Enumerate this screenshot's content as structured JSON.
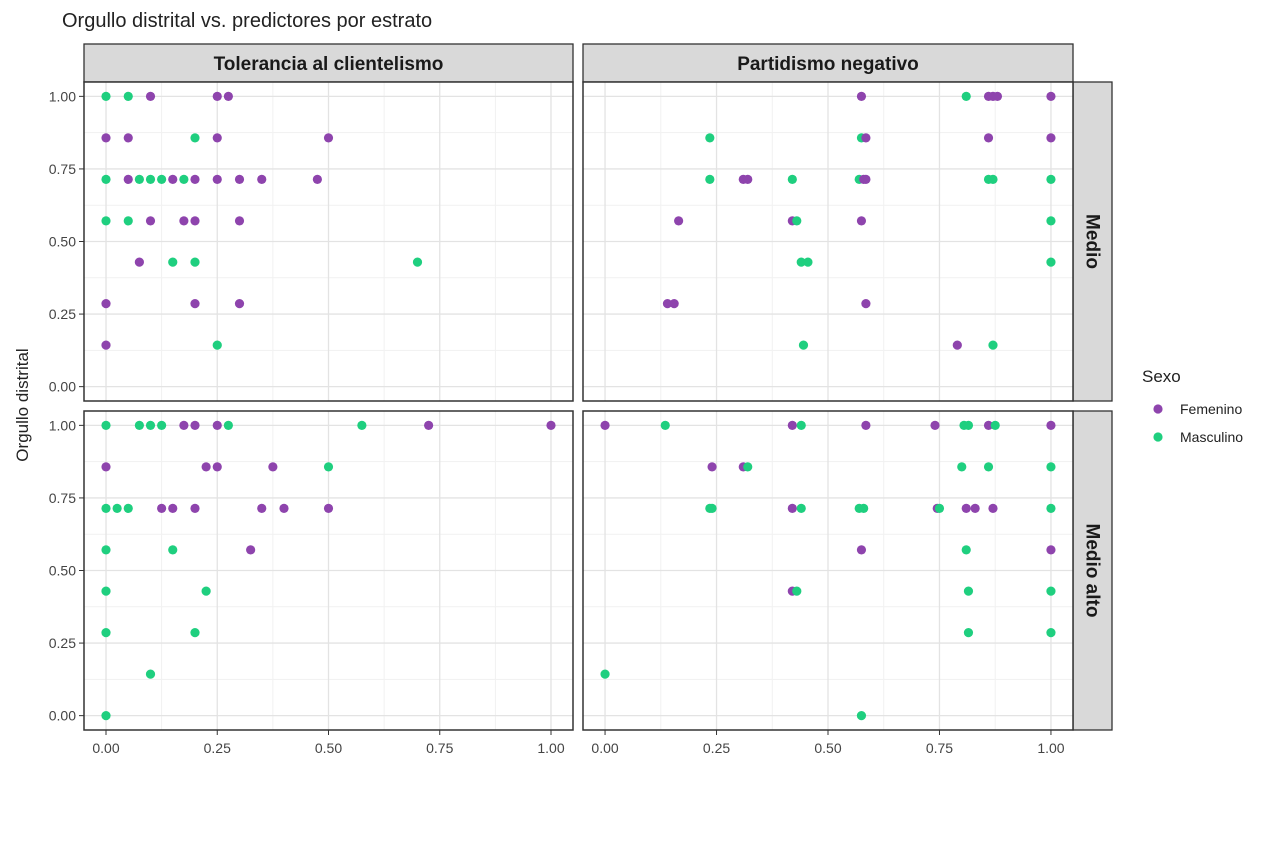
{
  "chart_data": {
    "type": "scatter",
    "title": "Orgullo distrital vs. predictores por estrato",
    "ylabel": "Orgullo distrital",
    "xlabel": "",
    "xlim": [
      0,
      1
    ],
    "ylim": [
      0,
      1
    ],
    "x_ticks": [
      "0.00",
      "0.25",
      "0.50",
      "0.75",
      "1.00"
    ],
    "y_ticks": [
      "0.00",
      "0.25",
      "0.50",
      "0.75",
      "1.00"
    ],
    "grid": true,
    "facet_columns": [
      "Tolerancia al clientelismo",
      "Partidismo negativo"
    ],
    "facet_rows": [
      "Medio",
      "Medio alto"
    ],
    "legend": {
      "title": "Sexo",
      "position": "right",
      "entries": [
        {
          "label": "Femenino",
          "color": "#8e44ad"
        },
        {
          "label": "Masculino",
          "color": "#1fcf7f"
        }
      ]
    },
    "colors": {
      "Femenino": "#8e44ad",
      "Masculino": "#1fcf7f"
    },
    "panels": [
      {
        "col": "Tolerancia al clientelismo",
        "row": "Medio",
        "points": [
          [
            0,
            1,
            "M"
          ],
          [
            0.05,
            1,
            "M"
          ],
          [
            0.1,
            1,
            "F"
          ],
          [
            0.25,
            1,
            "F"
          ],
          [
            0.275,
            1,
            "F"
          ],
          [
            0,
            0.857,
            "F"
          ],
          [
            0.05,
            0.857,
            "F"
          ],
          [
            0.2,
            0.857,
            "M"
          ],
          [
            0.25,
            0.857,
            "F"
          ],
          [
            0.5,
            0.857,
            "F"
          ],
          [
            0,
            0.714,
            "M"
          ],
          [
            0.05,
            0.714,
            "F"
          ],
          [
            0.075,
            0.714,
            "M"
          ],
          [
            0.1,
            0.714,
            "M"
          ],
          [
            0.125,
            0.714,
            "M"
          ],
          [
            0.15,
            0.714,
            "F"
          ],
          [
            0.175,
            0.714,
            "M"
          ],
          [
            0.2,
            0.714,
            "F"
          ],
          [
            0.25,
            0.714,
            "F"
          ],
          [
            0.3,
            0.714,
            "F"
          ],
          [
            0.35,
            0.714,
            "F"
          ],
          [
            0.475,
            0.714,
            "F"
          ],
          [
            0,
            0.571,
            "M"
          ],
          [
            0.05,
            0.571,
            "M"
          ],
          [
            0.1,
            0.571,
            "F"
          ],
          [
            0.175,
            0.571,
            "F"
          ],
          [
            0.2,
            0.571,
            "F"
          ],
          [
            0.3,
            0.571,
            "F"
          ],
          [
            0.075,
            0.429,
            "F"
          ],
          [
            0.15,
            0.429,
            "M"
          ],
          [
            0.2,
            0.429,
            "M"
          ],
          [
            0.7,
            0.429,
            "M"
          ],
          [
            0,
            0.286,
            "F"
          ],
          [
            0.2,
            0.286,
            "F"
          ],
          [
            0.3,
            0.286,
            "F"
          ],
          [
            0,
            0.143,
            "F"
          ],
          [
            0.25,
            0.143,
            "M"
          ]
        ]
      },
      {
        "col": "Partidismo negativo",
        "row": "Medio",
        "points": [
          [
            0.575,
            1,
            "F"
          ],
          [
            0.81,
            1,
            "M"
          ],
          [
            0.86,
            1,
            "F"
          ],
          [
            0.87,
            1,
            "F"
          ],
          [
            0.88,
            1,
            "F"
          ],
          [
            1,
            1,
            "F"
          ],
          [
            0.235,
            0.857,
            "M"
          ],
          [
            0.575,
            0.857,
            "M"
          ],
          [
            0.585,
            0.857,
            "F"
          ],
          [
            0.86,
            0.857,
            "F"
          ],
          [
            1,
            0.857,
            "F"
          ],
          [
            0.235,
            0.714,
            "M"
          ],
          [
            0.31,
            0.714,
            "F"
          ],
          [
            0.32,
            0.714,
            "F"
          ],
          [
            0.42,
            0.714,
            "M"
          ],
          [
            0.57,
            0.714,
            "M"
          ],
          [
            0.58,
            0.714,
            "F"
          ],
          [
            0.585,
            0.714,
            "F"
          ],
          [
            0.86,
            0.714,
            "M"
          ],
          [
            0.87,
            0.714,
            "M"
          ],
          [
            1,
            0.714,
            "M"
          ],
          [
            0.165,
            0.571,
            "F"
          ],
          [
            0.42,
            0.571,
            "F"
          ],
          [
            0.43,
            0.571,
            "M"
          ],
          [
            0.575,
            0.571,
            "F"
          ],
          [
            1,
            0.571,
            "M"
          ],
          [
            0.44,
            0.429,
            "M"
          ],
          [
            0.455,
            0.429,
            "M"
          ],
          [
            1,
            0.429,
            "M"
          ],
          [
            0.14,
            0.286,
            "F"
          ],
          [
            0.155,
            0.286,
            "F"
          ],
          [
            0.585,
            0.286,
            "F"
          ],
          [
            0.445,
            0.143,
            "M"
          ],
          [
            0.79,
            0.143,
            "F"
          ],
          [
            0.87,
            0.143,
            "M"
          ]
        ]
      },
      {
        "col": "Tolerancia al clientelismo",
        "row": "Medio alto",
        "points": [
          [
            0,
            1,
            "M"
          ],
          [
            0.075,
            1,
            "M"
          ],
          [
            0.1,
            1,
            "M"
          ],
          [
            0.125,
            1,
            "M"
          ],
          [
            0.175,
            1,
            "F"
          ],
          [
            0.2,
            1,
            "F"
          ],
          [
            0.25,
            1,
            "F"
          ],
          [
            0.275,
            1,
            "M"
          ],
          [
            0.575,
            1,
            "M"
          ],
          [
            0.725,
            1,
            "F"
          ],
          [
            1,
            1,
            "F"
          ],
          [
            0,
            0.857,
            "F"
          ],
          [
            0.225,
            0.857,
            "F"
          ],
          [
            0.25,
            0.857,
            "F"
          ],
          [
            0.375,
            0.857,
            "F"
          ],
          [
            0.5,
            0.857,
            "M"
          ],
          [
            0,
            0.714,
            "M"
          ],
          [
            0.025,
            0.714,
            "M"
          ],
          [
            0.05,
            0.714,
            "M"
          ],
          [
            0.125,
            0.714,
            "F"
          ],
          [
            0.15,
            0.714,
            "F"
          ],
          [
            0.2,
            0.714,
            "F"
          ],
          [
            0.35,
            0.714,
            "F"
          ],
          [
            0.4,
            0.714,
            "F"
          ],
          [
            0.5,
            0.714,
            "F"
          ],
          [
            0,
            0.571,
            "M"
          ],
          [
            0.15,
            0.571,
            "M"
          ],
          [
            0.325,
            0.571,
            "F"
          ],
          [
            0,
            0.429,
            "M"
          ],
          [
            0.225,
            0.429,
            "M"
          ],
          [
            0,
            0.286,
            "M"
          ],
          [
            0.2,
            0.286,
            "M"
          ],
          [
            0.1,
            0.143,
            "M"
          ],
          [
            0,
            0,
            "M"
          ]
        ]
      },
      {
        "col": "Partidismo negativo",
        "row": "Medio alto",
        "points": [
          [
            0,
            1,
            "F"
          ],
          [
            0.135,
            1,
            "M"
          ],
          [
            0.42,
            1,
            "F"
          ],
          [
            0.44,
            1,
            "M"
          ],
          [
            0.585,
            1,
            "F"
          ],
          [
            0.74,
            1,
            "F"
          ],
          [
            0.805,
            1,
            "M"
          ],
          [
            0.815,
            1,
            "M"
          ],
          [
            0.86,
            1,
            "F"
          ],
          [
            0.875,
            1,
            "M"
          ],
          [
            1,
            1,
            "F"
          ],
          [
            0.24,
            0.857,
            "F"
          ],
          [
            0.31,
            0.857,
            "F"
          ],
          [
            0.32,
            0.857,
            "M"
          ],
          [
            0.8,
            0.857,
            "M"
          ],
          [
            0.86,
            0.857,
            "M"
          ],
          [
            1,
            0.857,
            "M"
          ],
          [
            0.235,
            0.714,
            "M"
          ],
          [
            0.24,
            0.714,
            "M"
          ],
          [
            0.42,
            0.714,
            "F"
          ],
          [
            0.44,
            0.714,
            "M"
          ],
          [
            0.57,
            0.714,
            "M"
          ],
          [
            0.58,
            0.714,
            "M"
          ],
          [
            0.745,
            0.714,
            "F"
          ],
          [
            0.75,
            0.714,
            "M"
          ],
          [
            0.81,
            0.714,
            "F"
          ],
          [
            0.83,
            0.714,
            "F"
          ],
          [
            0.87,
            0.714,
            "F"
          ],
          [
            1,
            0.714,
            "M"
          ],
          [
            0.575,
            0.571,
            "F"
          ],
          [
            0.81,
            0.571,
            "M"
          ],
          [
            1,
            0.571,
            "F"
          ],
          [
            0.42,
            0.429,
            "F"
          ],
          [
            0.43,
            0.429,
            "M"
          ],
          [
            0.815,
            0.429,
            "M"
          ],
          [
            1,
            0.429,
            "M"
          ],
          [
            0.815,
            0.286,
            "M"
          ],
          [
            1,
            0.286,
            "M"
          ],
          [
            0,
            0.143,
            "M"
          ],
          [
            0.575,
            0,
            "M"
          ]
        ]
      }
    ]
  }
}
